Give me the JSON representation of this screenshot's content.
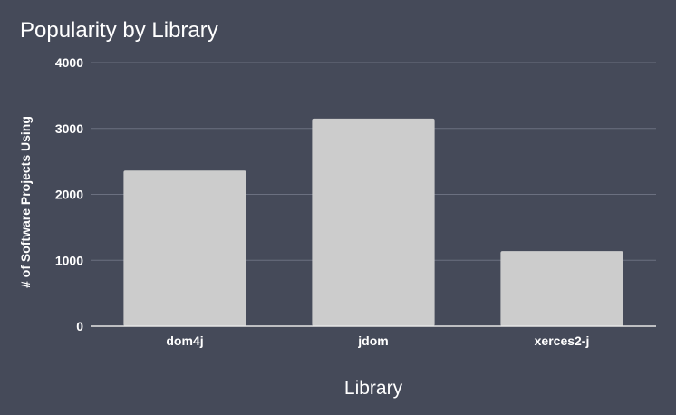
{
  "chart_data": {
    "type": "bar",
    "title": "Popularity by Library",
    "xlabel": "Library",
    "ylabel": "# of Software Projects Using",
    "categories": [
      "dom4j",
      "jdom",
      "xerces2-j"
    ],
    "values": [
      2360,
      3150,
      1140
    ],
    "ylim": [
      0,
      4000
    ],
    "yticks": [
      "0",
      "1000",
      "2000",
      "3000",
      "4000"
    ],
    "grid": true,
    "legend": "none",
    "colors": {
      "background": "#454a59",
      "bar": "#cccccc",
      "gridline": "#6b7080",
      "axis": "#e6e6e6",
      "text": "#ffffff"
    }
  }
}
